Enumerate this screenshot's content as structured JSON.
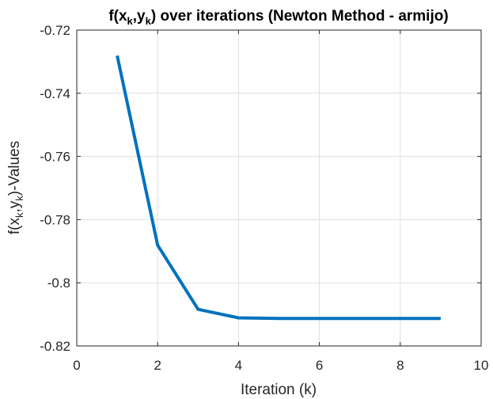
{
  "chart_data": {
    "type": "line",
    "title": {
      "pre": "f(x",
      "sub1": "k",
      "mid": ",y",
      "sub2": "k",
      "post": ") over iterations (Newton Method - armijo)"
    },
    "xlabel": "Iteration (k)",
    "ylabel": {
      "pre": "f(x",
      "sub1": "k",
      "mid": ",y",
      "sub2": "k",
      "post": ")-Values"
    },
    "xlim": [
      0,
      10
    ],
    "ylim": [
      -0.82,
      -0.72
    ],
    "xticks": [
      0,
      2,
      4,
      6,
      8,
      10
    ],
    "xtick_labels": [
      "0",
      "2",
      "4",
      "6",
      "8",
      "10"
    ],
    "yticks": [
      -0.82,
      -0.8,
      -0.78,
      -0.76,
      -0.74,
      -0.72
    ],
    "ytick_labels": [
      "-0.82",
      "-0.8",
      "-0.78",
      "-0.76",
      "-0.74",
      "-0.72"
    ],
    "grid": true,
    "series": [
      {
        "color": "#0072BD",
        "x": [
          1,
          2,
          3,
          4,
          5,
          6,
          7,
          8,
          9
        ],
        "y": [
          -0.7281,
          -0.7881,
          -0.8084,
          -0.8111,
          -0.8113,
          -0.8113,
          -0.8113,
          -0.8113,
          -0.8113
        ]
      }
    ]
  }
}
